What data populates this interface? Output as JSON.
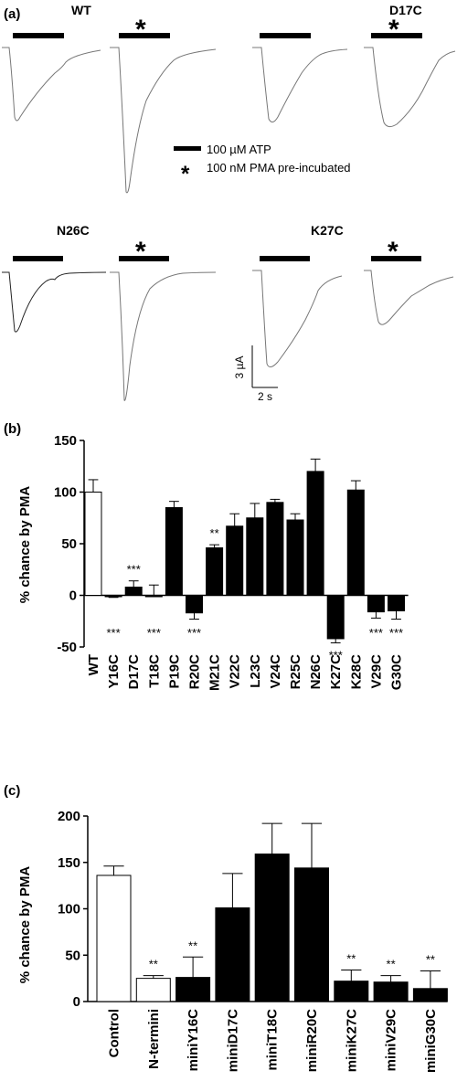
{
  "panel_a": {
    "label": "(a)",
    "groups": [
      {
        "name": "WT",
        "star": "*"
      },
      {
        "name": "D17C",
        "star": "*"
      },
      {
        "name": "N26C",
        "star": "*"
      },
      {
        "name": "K27C",
        "star": "*"
      }
    ],
    "legend_bar": "100 µM ATP",
    "legend_star_symbol": "*",
    "legend_star": "100 nM PMA pre-incubated",
    "scale_y": "3 µA",
    "scale_x": "2 s"
  },
  "chart_data": [
    {
      "type": "bar",
      "panel_label": "(b)",
      "ylabel": "% chance by PMA",
      "ylim": [
        -50,
        150
      ],
      "yticks": [
        -50,
        0,
        50,
        100,
        150
      ],
      "categories": [
        "WT",
        "Y16C",
        "D17C",
        "T18C",
        "P19C",
        "R20C",
        "M21C",
        "V22C",
        "L23C",
        "V24C",
        "R25C",
        "N26C",
        "K27C",
        "K28C",
        "V29C",
        "G30C"
      ],
      "values": [
        100,
        -1,
        8,
        0,
        85,
        -17,
        46,
        67,
        75,
        90,
        73,
        120,
        -42,
        102,
        -16,
        -15
      ],
      "errors": [
        12,
        1,
        6,
        10,
        6,
        6,
        3,
        12,
        14,
        3,
        6,
        12,
        4,
        9,
        6,
        8
      ],
      "fill": [
        "#ffffff",
        "#000000",
        "#000000",
        "#000000",
        "#000000",
        "#000000",
        "#000000",
        "#000000",
        "#000000",
        "#000000",
        "#000000",
        "#000000",
        "#000000",
        "#000000",
        "#000000",
        "#000000"
      ],
      "annotations": [
        {
          "category": "Y16C",
          "text": "***",
          "position": "below"
        },
        {
          "category": "D17C",
          "text": "***",
          "position": "above"
        },
        {
          "category": "T18C",
          "text": "***",
          "position": "below"
        },
        {
          "category": "R20C",
          "text": "***",
          "position": "below"
        },
        {
          "category": "M21C",
          "text": "**",
          "position": "above"
        },
        {
          "category": "K27C",
          "text": "***",
          "position": "below"
        },
        {
          "category": "V29C",
          "text": "***",
          "position": "below"
        },
        {
          "category": "G30C",
          "text": "***",
          "position": "below"
        }
      ]
    },
    {
      "type": "bar",
      "panel_label": "(c)",
      "ylabel": "% chance by PMA",
      "ylim": [
        0,
        200
      ],
      "yticks": [
        0,
        50,
        100,
        150,
        200
      ],
      "categories": [
        "Control",
        "N-termini",
        "miniY16C",
        "miniD17C",
        "miniT18C",
        "miniR20C",
        "miniK27C",
        "miniV29C",
        "miniG30C"
      ],
      "values": [
        136,
        25,
        26,
        101,
        159,
        144,
        22,
        21,
        14
      ],
      "errors": [
        10,
        3,
        22,
        37,
        33,
        48,
        12,
        7,
        19
      ],
      "fill": [
        "#ffffff",
        "#ffffff",
        "#000000",
        "#000000",
        "#000000",
        "#000000",
        "#000000",
        "#000000",
        "#000000"
      ],
      "annotations": [
        {
          "category": "N-termini",
          "text": "**",
          "position": "above"
        },
        {
          "category": "miniY16C",
          "text": "**",
          "position": "above"
        },
        {
          "category": "miniK27C",
          "text": "**",
          "position": "above"
        },
        {
          "category": "miniV29C",
          "text": "**",
          "position": "above"
        },
        {
          "category": "miniG30C",
          "text": "**",
          "position": "above"
        }
      ]
    }
  ]
}
